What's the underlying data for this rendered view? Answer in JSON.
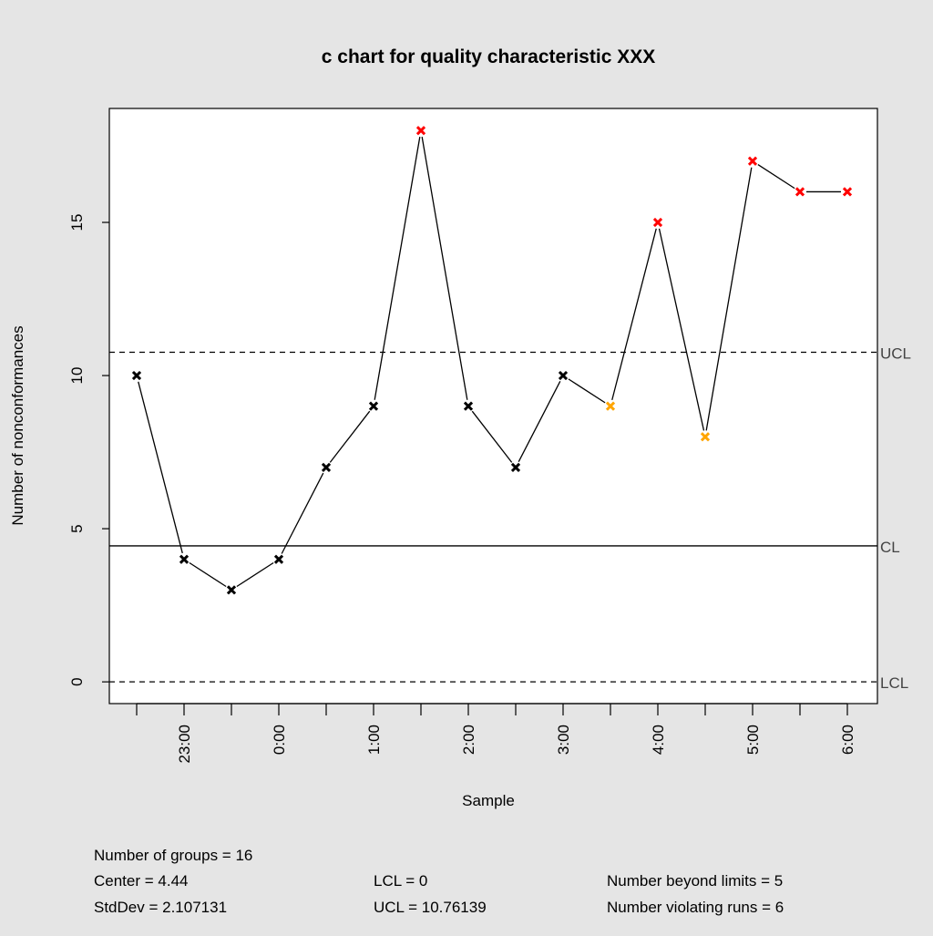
{
  "chart_data": {
    "type": "line",
    "title": "c chart for quality characteristic XXX",
    "xlabel": "Sample",
    "ylabel": "Number of nonconformances",
    "ylim": [
      -0.71,
      18.72
    ],
    "y_ticks": [
      0,
      5,
      10,
      15
    ],
    "x_tick_labels": [
      "",
      "23:00",
      "",
      "0:00",
      "",
      "1:00",
      "",
      "2:00",
      "",
      "3:00",
      "",
      "4:00",
      "",
      "5:00",
      "",
      "6:00"
    ],
    "values": [
      10,
      4,
      3,
      4,
      7,
      9,
      18,
      9,
      7,
      10,
      9,
      15,
      8,
      17,
      16,
      16
    ],
    "point_status": [
      "ok",
      "ok",
      "ok",
      "ok",
      "ok",
      "ok",
      "beyond",
      "ok",
      "ok",
      "ok",
      "run",
      "beyond",
      "run",
      "beyond",
      "beyond",
      "beyond"
    ],
    "status_colors": {
      "ok": "#000000",
      "beyond": "#ff0000",
      "run": "#ffa500"
    },
    "limits": [
      {
        "label": "UCL",
        "value": 10.76139,
        "style": "dashed"
      },
      {
        "label": "CL",
        "value": 4.44,
        "style": "solid"
      },
      {
        "label": "LCL",
        "value": 0,
        "style": "dashed"
      }
    ],
    "grid": false,
    "background": "#e5e5e5"
  },
  "summary": {
    "groups": "Number of groups = 16",
    "center": "Center = 4.44",
    "stddev": "StdDev = 2.107131",
    "lcl": "LCL = 0",
    "ucl": "UCL = 10.76139",
    "beyond": "Number beyond limits = 5",
    "runs": "Number violating runs = 6"
  }
}
